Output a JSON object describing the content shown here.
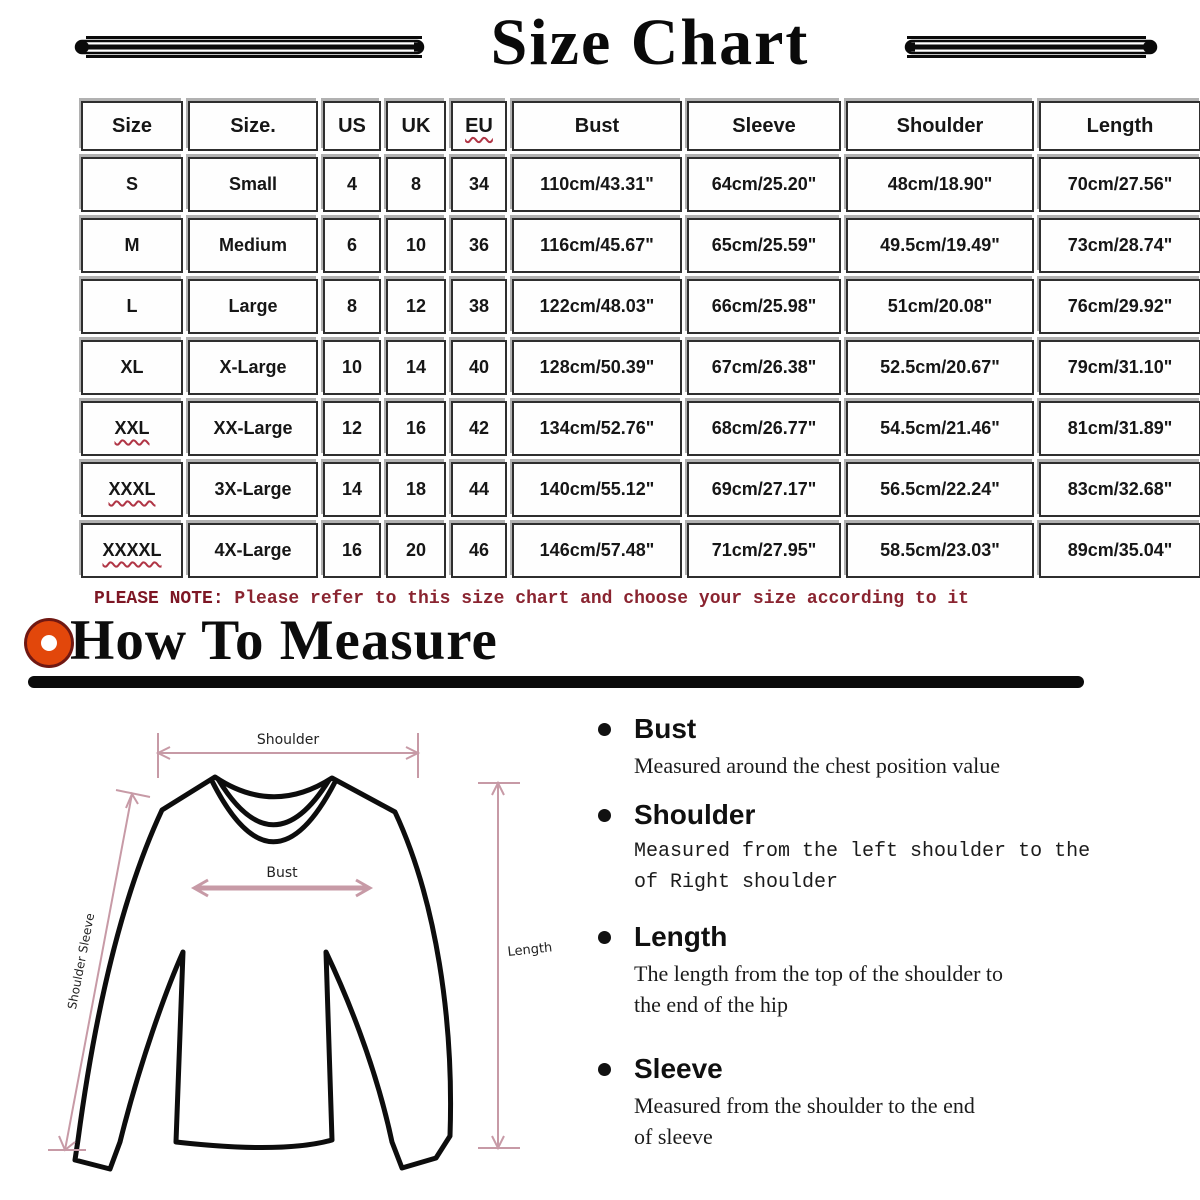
{
  "title": "Size Chart",
  "size_table": {
    "headers": [
      {
        "label": "Size",
        "squiggle": false
      },
      {
        "label": "Size.",
        "squiggle": false
      },
      {
        "label": "US",
        "squiggle": false
      },
      {
        "label": "UK",
        "squiggle": false
      },
      {
        "label": "EU",
        "squiggle": true
      },
      {
        "label": "Bust",
        "squiggle": false
      },
      {
        "label": "Sleeve",
        "squiggle": false
      },
      {
        "label": "Shoulder",
        "squiggle": false
      },
      {
        "label": "Length",
        "squiggle": false
      }
    ],
    "rows": [
      {
        "cells": [
          "S",
          "Small",
          "4",
          "8",
          "34",
          "110cm/43.31\"",
          "64cm/25.20\"",
          "48cm/18.90\"",
          "70cm/27.56\""
        ],
        "squiggle": false
      },
      {
        "cells": [
          "M",
          "Medium",
          "6",
          "10",
          "36",
          "116cm/45.67\"",
          "65cm/25.59\"",
          "49.5cm/19.49\"",
          "73cm/28.74\""
        ],
        "squiggle": false
      },
      {
        "cells": [
          "L",
          "Large",
          "8",
          "12",
          "38",
          "122cm/48.03\"",
          "66cm/25.98\"",
          "51cm/20.08\"",
          "76cm/29.92\""
        ],
        "squiggle": false
      },
      {
        "cells": [
          "XL",
          "X-Large",
          "10",
          "14",
          "40",
          "128cm/50.39\"",
          "67cm/26.38\"",
          "52.5cm/20.67\"",
          "79cm/31.10\""
        ],
        "squiggle": false
      },
      {
        "cells": [
          "XXL",
          "XX-Large",
          "12",
          "16",
          "42",
          "134cm/52.76\"",
          "68cm/26.77\"",
          "54.5cm/21.46\"",
          "81cm/31.89\""
        ],
        "squiggle": true
      },
      {
        "cells": [
          "XXXL",
          "3X-Large",
          "14",
          "18",
          "44",
          "140cm/55.12\"",
          "69cm/27.17\"",
          "56.5cm/22.24\"",
          "83cm/32.68\""
        ],
        "squiggle": true
      },
      {
        "cells": [
          "XXXXL",
          "4X-Large",
          "16",
          "20",
          "46",
          "146cm/57.48\"",
          "71cm/27.95\"",
          "58.5cm/23.03\"",
          "89cm/35.04\""
        ],
        "squiggle": true
      }
    ]
  },
  "note": {
    "prefix": "PLEASE NOTE:",
    "text": " Please refer to this size chart and choose your size according to it"
  },
  "how_to_measure": {
    "heading": "How To Measure",
    "items": [
      {
        "term": "Bust",
        "desc": "Measured around the chest position value"
      },
      {
        "term": "Shoulder",
        "desc": "Measured from the left shoulder to the\nof Right shoulder"
      },
      {
        "term": "Length",
        "desc": "The length from the top of the shoulder to\nthe end of the hip"
      },
      {
        "term": "Sleeve",
        "desc": "Measured from the shoulder to the end\nof sleeve"
      }
    ]
  },
  "diagram": {
    "labels": {
      "shoulder": "Shoulder",
      "bust": "Bust",
      "sleeve": "Shoulder Sleeve",
      "length": "Length"
    }
  },
  "colors": {
    "accent_orange": "#e2470b",
    "note_maroon": "#7d1624",
    "squiggle_red": "#b03545",
    "arrow_pink": "#c79aa6",
    "ink": "#0b0b0b"
  }
}
